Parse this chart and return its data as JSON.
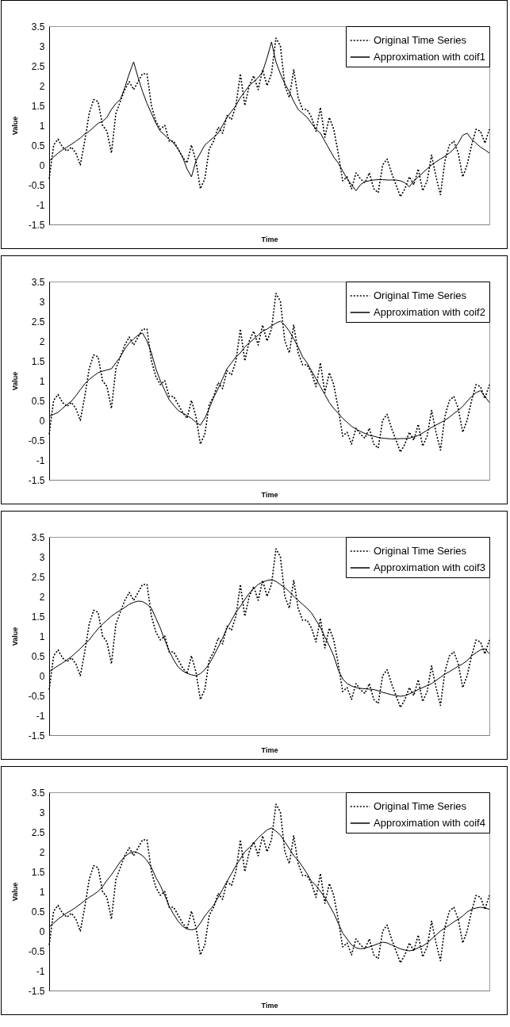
{
  "chart_data": [
    {
      "type": "line",
      "xlabel": "Time",
      "ylabel": "Value",
      "ylim": [
        -1.5,
        3.5
      ],
      "yticks": [
        -1.5,
        -1,
        -0.5,
        0,
        0.5,
        1,
        1.5,
        2,
        2.5,
        3,
        3.5
      ],
      "legend": "top right",
      "categories": [
        null,
        null,
        null,
        null,
        null,
        null,
        null,
        null,
        null,
        null,
        null,
        null,
        null,
        null,
        null,
        null,
        null,
        null,
        null,
        null,
        null,
        null,
        null,
        null,
        null,
        null,
        null,
        null,
        null,
        null,
        null,
        null,
        null,
        null,
        null,
        null,
        null,
        null,
        null,
        null,
        null,
        null,
        null,
        null,
        null,
        null,
        null,
        null,
        null,
        null,
        null,
        null,
        null,
        null,
        null,
        null,
        null,
        null,
        null,
        null,
        null,
        null,
        null,
        null,
        null,
        null,
        null,
        null,
        null,
        null,
        null,
        null,
        null,
        null,
        null,
        null,
        null,
        null,
        null,
        null,
        null,
        null,
        null,
        null,
        null,
        null,
        null,
        null,
        null,
        null,
        null,
        null,
        null,
        null,
        null,
        null,
        null,
        null,
        null,
        null
      ],
      "series": [
        {
          "name": "Original Time Series",
          "color": "#000000",
          "line_style": "dotted",
          "values": [
            -0.35,
            0.5,
            0.65,
            0.45,
            0.35,
            0.45,
            0.3,
            0.0,
            0.6,
            1.3,
            1.65,
            1.6,
            1.0,
            0.85,
            0.3,
            1.3,
            1.6,
            1.9,
            2.1,
            1.9,
            2.1,
            2.3,
            2.3,
            1.5,
            1.1,
            0.9,
            1.0,
            0.6,
            0.6,
            0.4,
            0.2,
            0.05,
            0.5,
            0.1,
            -0.6,
            -0.35,
            0.4,
            0.6,
            0.95,
            0.8,
            1.25,
            1.15,
            1.5,
            2.3,
            1.5,
            2.0,
            2.25,
            1.9,
            2.4,
            2.0,
            2.3,
            3.2,
            3.0,
            2.0,
            1.7,
            2.4,
            1.7,
            1.4,
            1.4,
            1.2,
            0.85,
            1.45,
            0.7,
            1.2,
            0.9,
            0.3,
            -0.4,
            -0.3,
            -0.6,
            -0.2,
            -0.35,
            -0.45,
            -0.2,
            -0.6,
            -0.7,
            0.0,
            0.15,
            -0.2,
            -0.5,
            -0.8,
            -0.6,
            -0.3,
            -0.5,
            -0.1,
            -0.65,
            -0.4,
            0.25,
            -0.3,
            -0.75,
            0.1,
            0.5,
            0.6,
            0.3,
            -0.3,
            0.0,
            0.5,
            0.9,
            0.85,
            0.55,
            0.9
          ]
        },
        {
          "name": "Approximation with coif1",
          "color": "#000000",
          "line_style": "solid",
          "values": [
            0.1,
            0.2,
            0.3,
            0.38,
            0.45,
            0.52,
            0.6,
            0.68,
            0.78,
            0.85,
            0.95,
            1.05,
            1.1,
            1.2,
            1.4,
            1.55,
            1.65,
            1.95,
            2.3,
            2.6,
            2.2,
            1.85,
            1.55,
            1.3,
            1.05,
            0.85,
            0.75,
            0.65,
            0.55,
            0.4,
            0.2,
            -0.1,
            -0.3,
            0.1,
            0.3,
            0.5,
            0.6,
            0.7,
            0.8,
            1.0,
            1.2,
            1.35,
            1.5,
            1.7,
            1.85,
            2.0,
            2.1,
            2.2,
            2.35,
            2.7,
            3.1,
            2.6,
            2.3,
            2.05,
            1.85,
            1.6,
            1.4,
            1.3,
            1.2,
            1.05,
            0.9,
            0.8,
            0.6,
            0.4,
            0.2,
            0.05,
            -0.15,
            -0.35,
            -0.5,
            -0.65,
            -0.5,
            -0.42,
            -0.4,
            -0.38,
            -0.37,
            -0.37,
            -0.38,
            -0.38,
            -0.38,
            -0.4,
            -0.45,
            -0.55,
            -0.4,
            -0.3,
            -0.2,
            -0.1,
            0.0,
            0.08,
            0.15,
            0.22,
            0.3,
            0.4,
            0.55,
            0.75,
            0.8,
            0.65,
            0.55,
            0.45,
            0.38,
            0.3
          ]
        }
      ]
    },
    {
      "type": "line",
      "xlabel": "Time",
      "ylabel": "Value",
      "ylim": [
        -1.5,
        3.5
      ],
      "yticks": [
        -1.5,
        -1,
        -0.5,
        0,
        0.5,
        1,
        1.5,
        2,
        2.5,
        3,
        3.5
      ],
      "legend": "top right",
      "categories": [
        null,
        null,
        null,
        null,
        null,
        null,
        null,
        null,
        null,
        null,
        null,
        null,
        null,
        null,
        null,
        null,
        null,
        null,
        null,
        null,
        null,
        null,
        null,
        null,
        null,
        null,
        null,
        null,
        null,
        null,
        null,
        null,
        null,
        null,
        null,
        null,
        null,
        null,
        null,
        null,
        null,
        null,
        null,
        null,
        null,
        null,
        null,
        null,
        null,
        null,
        null,
        null,
        null,
        null,
        null,
        null,
        null,
        null,
        null,
        null,
        null,
        null,
        null,
        null,
        null,
        null,
        null,
        null,
        null,
        null,
        null,
        null,
        null,
        null,
        null,
        null,
        null,
        null,
        null,
        null,
        null,
        null,
        null,
        null,
        null,
        null,
        null,
        null,
        null,
        null,
        null,
        null,
        null,
        null,
        null,
        null,
        null,
        null,
        null,
        null
      ],
      "series": [
        {
          "name": "Original Time Series",
          "color": "#000000",
          "line_style": "dotted",
          "values": [
            -0.35,
            0.5,
            0.65,
            0.45,
            0.35,
            0.45,
            0.3,
            0.0,
            0.6,
            1.3,
            1.65,
            1.6,
            1.0,
            0.85,
            0.3,
            1.3,
            1.6,
            1.9,
            2.1,
            1.9,
            2.1,
            2.3,
            2.3,
            1.5,
            1.1,
            0.9,
            1.0,
            0.6,
            0.6,
            0.4,
            0.2,
            0.05,
            0.5,
            0.1,
            -0.6,
            -0.35,
            0.4,
            0.6,
            0.95,
            0.8,
            1.25,
            1.15,
            1.5,
            2.3,
            1.5,
            2.0,
            2.25,
            1.9,
            2.4,
            2.0,
            2.3,
            3.2,
            3.0,
            2.0,
            1.7,
            2.4,
            1.7,
            1.4,
            1.4,
            1.2,
            0.85,
            1.45,
            0.7,
            1.2,
            0.9,
            0.3,
            -0.4,
            -0.3,
            -0.6,
            -0.2,
            -0.35,
            -0.45,
            -0.2,
            -0.6,
            -0.7,
            0.0,
            0.15,
            -0.2,
            -0.5,
            -0.8,
            -0.6,
            -0.3,
            -0.5,
            -0.1,
            -0.65,
            -0.4,
            0.25,
            -0.3,
            -0.75,
            0.1,
            0.5,
            0.6,
            0.3,
            -0.3,
            0.0,
            0.5,
            0.9,
            0.85,
            0.55,
            0.9
          ]
        },
        {
          "name": "Approximation with coif2",
          "color": "#000000",
          "line_style": "solid",
          "values": [
            0.1,
            0.15,
            0.2,
            0.3,
            0.4,
            0.48,
            0.62,
            0.77,
            0.92,
            1.03,
            1.12,
            1.2,
            1.24,
            1.27,
            1.3,
            1.45,
            1.6,
            1.8,
            1.95,
            2.05,
            2.15,
            2.2,
            2.0,
            1.7,
            1.3,
            1.0,
            0.75,
            0.52,
            0.38,
            0.25,
            0.18,
            0.12,
            0.05,
            -0.05,
            -0.12,
            0.05,
            0.3,
            0.58,
            0.8,
            1.05,
            1.3,
            1.45,
            1.6,
            1.7,
            1.85,
            1.95,
            2.05,
            2.15,
            2.25,
            2.3,
            2.38,
            2.45,
            2.5,
            2.4,
            2.25,
            2.05,
            1.85,
            1.6,
            1.45,
            1.25,
            1.05,
            0.85,
            0.65,
            0.45,
            0.3,
            0.18,
            0.05,
            -0.05,
            -0.15,
            -0.22,
            -0.28,
            -0.33,
            -0.38,
            -0.4,
            -0.43,
            -0.45,
            -0.46,
            -0.47,
            -0.47,
            -0.46,
            -0.46,
            -0.45,
            -0.42,
            -0.38,
            -0.32,
            -0.25,
            -0.18,
            -0.12,
            -0.06,
            0.0,
            0.08,
            0.17,
            0.25,
            0.35,
            0.48,
            0.6,
            0.7,
            0.75,
            0.6,
            0.45
          ]
        }
      ]
    },
    {
      "type": "line",
      "xlabel": "Time",
      "ylabel": "Value",
      "ylim": [
        -1.5,
        3.5
      ],
      "yticks": [
        -1.5,
        -1,
        -0.5,
        0,
        0.5,
        1,
        1.5,
        2,
        2.5,
        3,
        3.5
      ],
      "legend": "top right",
      "categories": [
        null,
        null,
        null,
        null,
        null,
        null,
        null,
        null,
        null,
        null,
        null,
        null,
        null,
        null,
        null,
        null,
        null,
        null,
        null,
        null,
        null,
        null,
        null,
        null,
        null,
        null,
        null,
        null,
        null,
        null,
        null,
        null,
        null,
        null,
        null,
        null,
        null,
        null,
        null,
        null,
        null,
        null,
        null,
        null,
        null,
        null,
        null,
        null,
        null,
        null,
        null,
        null,
        null,
        null,
        null,
        null,
        null,
        null,
        null,
        null,
        null,
        null,
        null,
        null,
        null,
        null,
        null,
        null,
        null,
        null,
        null,
        null,
        null,
        null,
        null,
        null,
        null,
        null,
        null,
        null,
        null,
        null,
        null,
        null,
        null,
        null,
        null,
        null,
        null,
        null,
        null,
        null,
        null,
        null,
        null,
        null,
        null,
        null,
        null,
        null
      ],
      "series": [
        {
          "name": "Original Time Series",
          "color": "#000000",
          "line_style": "dotted",
          "values": [
            -0.35,
            0.5,
            0.65,
            0.45,
            0.35,
            0.45,
            0.3,
            0.0,
            0.6,
            1.3,
            1.65,
            1.6,
            1.0,
            0.85,
            0.3,
            1.3,
            1.6,
            1.9,
            2.1,
            1.9,
            2.1,
            2.3,
            2.3,
            1.5,
            1.1,
            0.9,
            1.0,
            0.6,
            0.6,
            0.4,
            0.2,
            0.05,
            0.5,
            0.1,
            -0.6,
            -0.35,
            0.4,
            0.6,
            0.95,
            0.8,
            1.25,
            1.15,
            1.5,
            2.3,
            1.5,
            2.0,
            2.25,
            1.9,
            2.4,
            2.0,
            2.3,
            3.2,
            3.0,
            2.0,
            1.7,
            2.4,
            1.7,
            1.4,
            1.4,
            1.2,
            0.85,
            1.45,
            0.7,
            1.2,
            0.9,
            0.3,
            -0.4,
            -0.3,
            -0.6,
            -0.2,
            -0.35,
            -0.45,
            -0.2,
            -0.6,
            -0.7,
            0.0,
            0.15,
            -0.2,
            -0.5,
            -0.8,
            -0.6,
            -0.3,
            -0.5,
            -0.1,
            -0.65,
            -0.4,
            0.25,
            -0.3,
            -0.75,
            0.1,
            0.5,
            0.6,
            0.3,
            -0.3,
            0.0,
            0.5,
            0.9,
            0.85,
            0.55,
            0.9
          ]
        },
        {
          "name": "Approximation with coif3",
          "color": "#000000",
          "line_style": "solid",
          "values": [
            0.1,
            0.18,
            0.25,
            0.32,
            0.4,
            0.48,
            0.58,
            0.68,
            0.8,
            0.9,
            1.05,
            1.18,
            1.3,
            1.4,
            1.5,
            1.58,
            1.65,
            1.72,
            1.8,
            1.85,
            1.88,
            1.87,
            1.8,
            1.7,
            1.45,
            1.2,
            0.9,
            0.62,
            0.4,
            0.22,
            0.12,
            0.06,
            0.02,
            0.0,
            0.05,
            0.15,
            0.3,
            0.5,
            0.72,
            0.95,
            1.2,
            1.4,
            1.6,
            1.75,
            1.92,
            2.08,
            2.2,
            2.3,
            2.36,
            2.4,
            2.42,
            2.38,
            2.3,
            2.22,
            2.12,
            2.0,
            1.9,
            1.8,
            1.7,
            1.58,
            1.4,
            1.22,
            0.98,
            0.75,
            0.5,
            0.15,
            -0.08,
            -0.2,
            -0.26,
            -0.3,
            -0.32,
            -0.33,
            -0.34,
            -0.35,
            -0.38,
            -0.42,
            -0.45,
            -0.48,
            -0.5,
            -0.52,
            -0.5,
            -0.46,
            -0.41,
            -0.35,
            -0.3,
            -0.25,
            -0.2,
            -0.12,
            -0.04,
            0.04,
            0.1,
            0.17,
            0.24,
            0.3,
            0.38,
            0.5,
            0.58,
            0.65,
            0.68,
            0.55
          ]
        }
      ]
    },
    {
      "type": "line",
      "xlabel": "Time",
      "ylabel": "Value",
      "ylim": [
        -1.5,
        3.5
      ],
      "yticks": [
        -1.5,
        -1,
        -0.5,
        0,
        0.5,
        1,
        1.5,
        2,
        2.5,
        3,
        3.5
      ],
      "legend": "top right",
      "categories": [
        null,
        null,
        null,
        null,
        null,
        null,
        null,
        null,
        null,
        null,
        null,
        null,
        null,
        null,
        null,
        null,
        null,
        null,
        null,
        null,
        null,
        null,
        null,
        null,
        null,
        null,
        null,
        null,
        null,
        null,
        null,
        null,
        null,
        null,
        null,
        null,
        null,
        null,
        null,
        null,
        null,
        null,
        null,
        null,
        null,
        null,
        null,
        null,
        null,
        null,
        null,
        null,
        null,
        null,
        null,
        null,
        null,
        null,
        null,
        null,
        null,
        null,
        null,
        null,
        null,
        null,
        null,
        null,
        null,
        null,
        null,
        null,
        null,
        null,
        null,
        null,
        null,
        null,
        null,
        null,
        null,
        null,
        null,
        null,
        null,
        null,
        null,
        null,
        null,
        null,
        null,
        null,
        null,
        null,
        null,
        null,
        null,
        null,
        null,
        null
      ],
      "series": [
        {
          "name": "Original Time Series",
          "color": "#000000",
          "line_style": "dotted",
          "values": [
            -0.35,
            0.5,
            0.65,
            0.45,
            0.35,
            0.45,
            0.3,
            0.0,
            0.6,
            1.3,
            1.65,
            1.6,
            1.0,
            0.85,
            0.3,
            1.3,
            1.6,
            1.9,
            2.1,
            1.9,
            2.1,
            2.3,
            2.3,
            1.5,
            1.1,
            0.9,
            1.0,
            0.6,
            0.6,
            0.4,
            0.2,
            0.05,
            0.5,
            0.1,
            -0.6,
            -0.35,
            0.4,
            0.6,
            0.95,
            0.8,
            1.25,
            1.15,
            1.5,
            2.3,
            1.5,
            2.0,
            2.25,
            1.9,
            2.4,
            2.0,
            2.3,
            3.2,
            3.0,
            2.0,
            1.7,
            2.4,
            1.7,
            1.4,
            1.4,
            1.2,
            0.85,
            1.45,
            0.7,
            1.2,
            0.9,
            0.3,
            -0.4,
            -0.3,
            -0.6,
            -0.2,
            -0.35,
            -0.45,
            -0.2,
            -0.6,
            -0.7,
            0.0,
            0.15,
            -0.2,
            -0.5,
            -0.8,
            -0.6,
            -0.3,
            -0.5,
            -0.1,
            -0.65,
            -0.4,
            0.25,
            -0.3,
            -0.75,
            0.1,
            0.5,
            0.6,
            0.3,
            -0.3,
            0.0,
            0.5,
            0.9,
            0.85,
            0.55,
            0.9
          ]
        },
        {
          "name": "Approximation with coif4",
          "color": "#000000",
          "line_style": "solid",
          "values": [
            0.1,
            0.2,
            0.3,
            0.38,
            0.46,
            0.52,
            0.6,
            0.68,
            0.77,
            0.85,
            0.92,
            1.0,
            1.12,
            1.28,
            1.42,
            1.58,
            1.75,
            1.88,
            1.96,
            2.0,
            1.97,
            1.9,
            1.78,
            1.6,
            1.35,
            1.15,
            0.9,
            0.62,
            0.42,
            0.25,
            0.12,
            0.05,
            0.03,
            0.05,
            0.2,
            0.38,
            0.52,
            0.65,
            0.85,
            1.05,
            1.25,
            1.45,
            1.65,
            1.82,
            2.0,
            2.1,
            2.22,
            2.35,
            2.45,
            2.55,
            2.6,
            2.52,
            2.42,
            2.25,
            2.08,
            1.9,
            1.78,
            1.62,
            1.45,
            1.25,
            1.15,
            1.0,
            0.85,
            0.65,
            0.45,
            0.2,
            -0.05,
            -0.2,
            -0.35,
            -0.42,
            -0.45,
            -0.43,
            -0.4,
            -0.36,
            -0.32,
            -0.28,
            -0.3,
            -0.35,
            -0.4,
            -0.45,
            -0.48,
            -0.5,
            -0.48,
            -0.42,
            -0.38,
            -0.3,
            -0.2,
            -0.1,
            0.0,
            0.08,
            0.15,
            0.23,
            0.3,
            0.38,
            0.48,
            0.55,
            0.58,
            0.6,
            0.58,
            0.55
          ]
        }
      ]
    }
  ]
}
